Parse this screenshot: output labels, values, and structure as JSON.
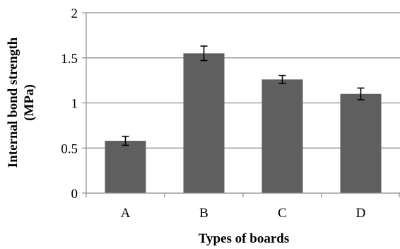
{
  "chart_data": {
    "type": "bar",
    "title": "",
    "xlabel": "Types of boards",
    "ylabel_lines": [
      "Internal bond strength",
      "(MPa)"
    ],
    "categories": [
      "A",
      "B",
      "C",
      "D"
    ],
    "values": [
      0.58,
      1.55,
      1.26,
      1.1
    ],
    "error": [
      0.05,
      0.08,
      0.045,
      0.065
    ],
    "ylim": [
      0,
      2
    ],
    "yticks": [
      0,
      0.5,
      1,
      1.5,
      2
    ],
    "ytick_labels": [
      "0",
      "0.5",
      "1",
      "1.5",
      "2"
    ],
    "grid": true,
    "legend": "none",
    "colors": {
      "bar": "#5f5f5f",
      "grid": "#8c8c8c",
      "axis": "#8c8c8c",
      "errorbar": "#000000"
    }
  }
}
